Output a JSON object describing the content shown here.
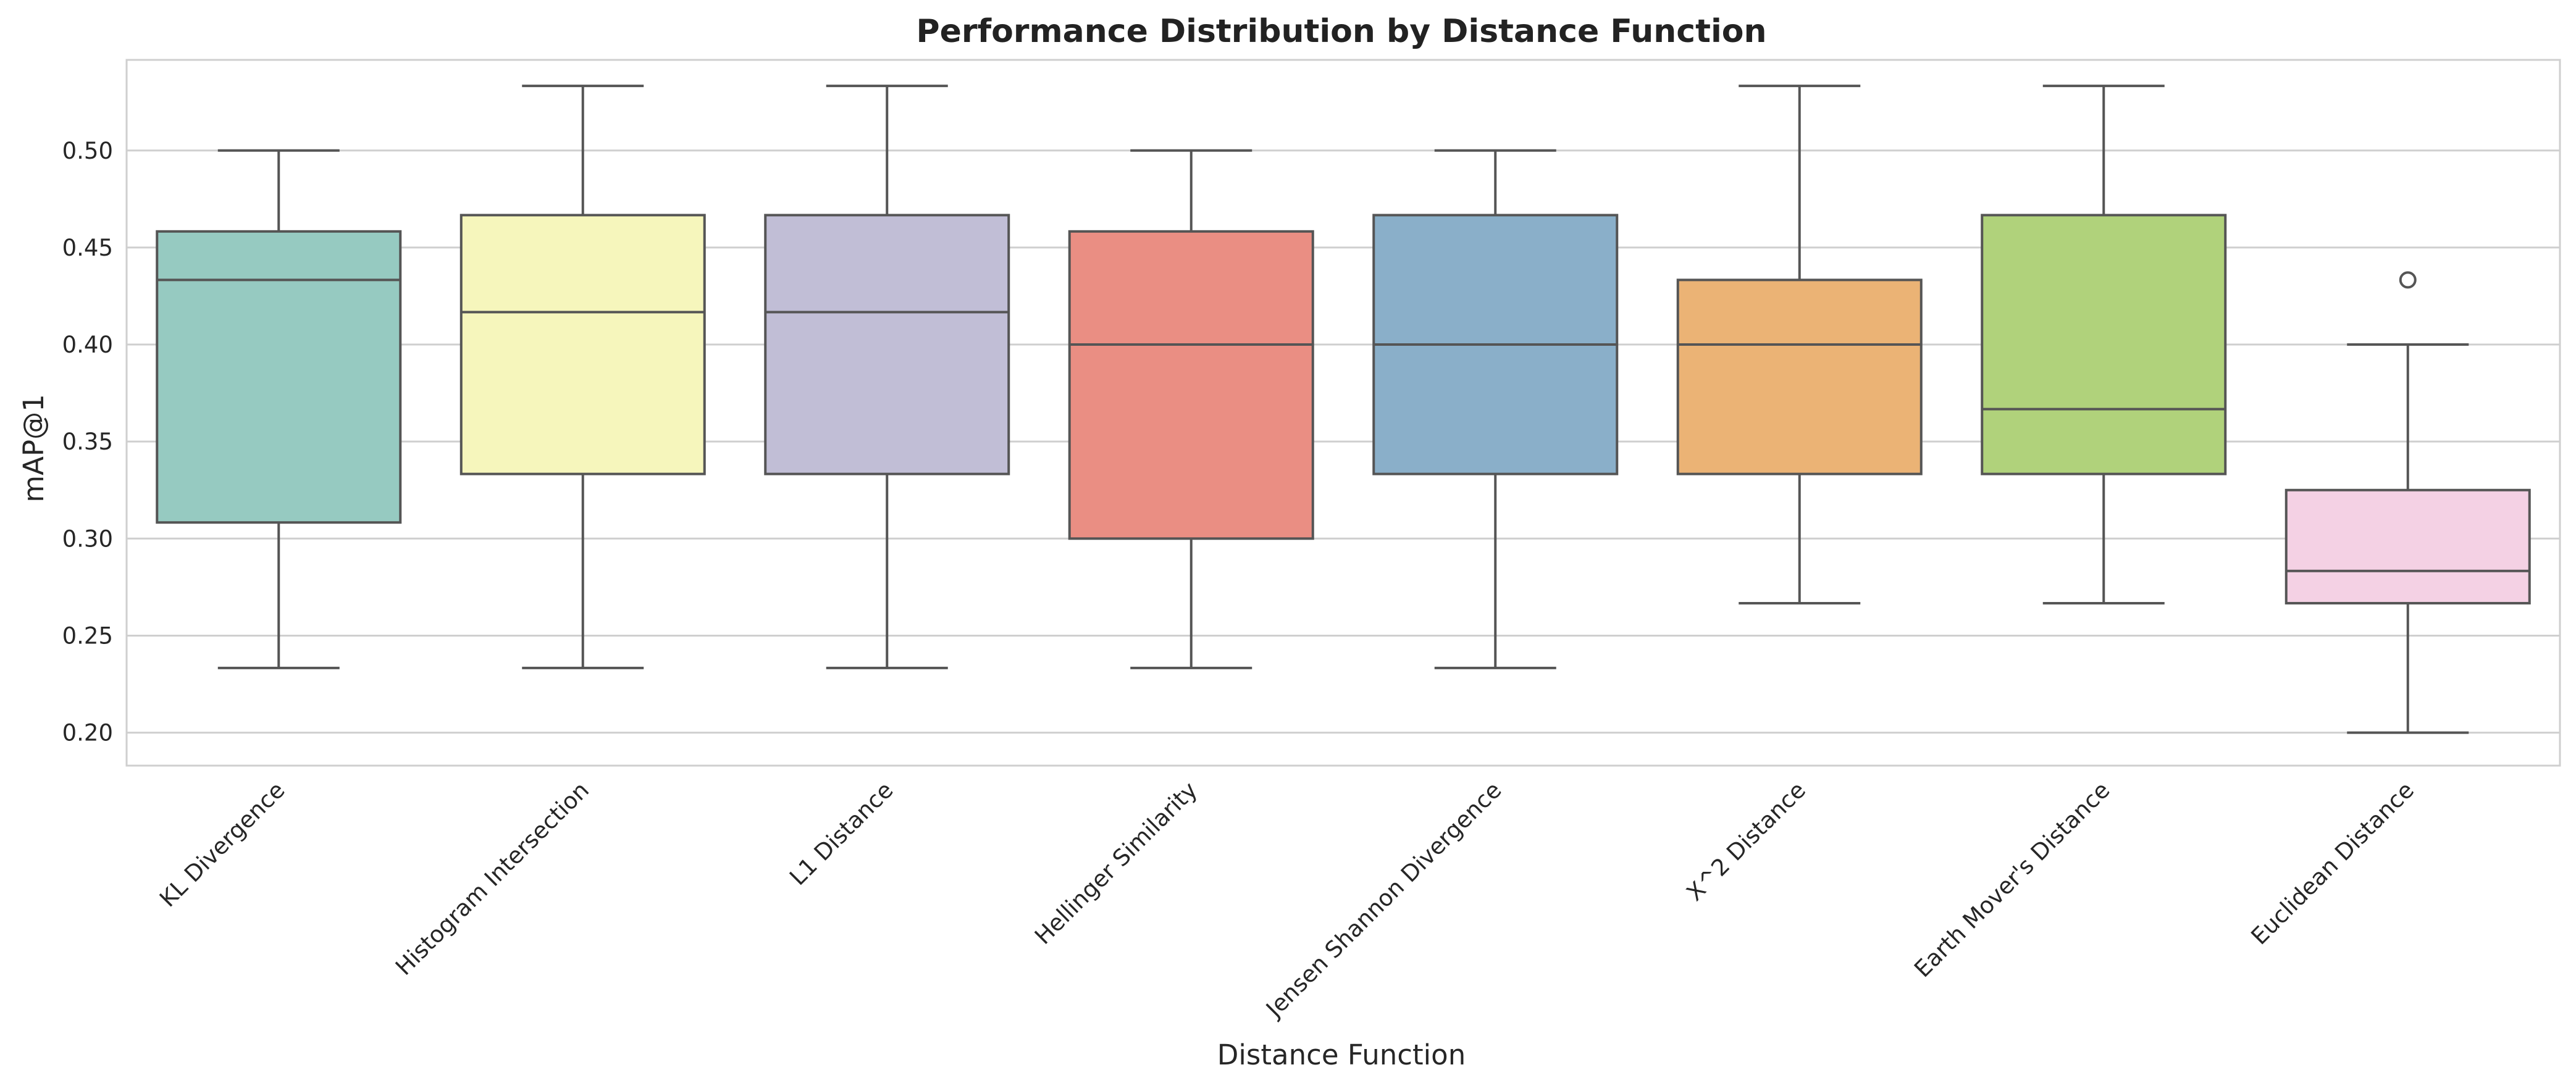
{
  "chart_data": {
    "type": "box",
    "title": "Performance Distribution by Distance Function",
    "xlabel": "Distance Function",
    "ylabel": "mAP@1",
    "ylim": [
      0.183,
      0.5467
    ],
    "yticks": [
      "0.20",
      "0.25",
      "0.30",
      "0.35",
      "0.40",
      "0.45",
      "0.50"
    ],
    "ytick_values": [
      0.2,
      0.25,
      0.3,
      0.35,
      0.4,
      0.45,
      0.5
    ],
    "grid": "horizontal",
    "categories": [
      "KL Divergence",
      "Histogram Intersection",
      "L1 Distance",
      "Hellinger Similarity",
      "Jensen Shannon Divergence",
      "X^2 Distance",
      "Earth Mover's Distance",
      "Euclidean Distance"
    ],
    "boxes": [
      {
        "whisker_low": 0.2333,
        "q1": 0.3083,
        "median": 0.4333,
        "q3": 0.4583,
        "whisker_high": 0.5,
        "fliers": [],
        "color": "#96cac1"
      },
      {
        "whisker_low": 0.2333,
        "q1": 0.3333,
        "median": 0.4167,
        "q3": 0.4667,
        "whisker_high": 0.5333,
        "fliers": [],
        "color": "#f6f6bc"
      },
      {
        "whisker_low": 0.2333,
        "q1": 0.3333,
        "median": 0.4167,
        "q3": 0.4667,
        "whisker_high": 0.5333,
        "fliers": [],
        "color": "#c1bed6"
      },
      {
        "whisker_low": 0.2333,
        "q1": 0.3,
        "median": 0.4,
        "q3": 0.4583,
        "whisker_high": 0.5,
        "fliers": [],
        "color": "#ea8e83"
      },
      {
        "whisker_low": 0.2333,
        "q1": 0.3333,
        "median": 0.4,
        "q3": 0.4667,
        "whisker_high": 0.5,
        "fliers": [],
        "color": "#8aafc9"
      },
      {
        "whisker_low": 0.2667,
        "q1": 0.3333,
        "median": 0.4,
        "q3": 0.4333,
        "whisker_high": 0.5333,
        "fliers": [],
        "color": "#ebb375"
      },
      {
        "whisker_low": 0.2667,
        "q1": 0.3333,
        "median": 0.3667,
        "q3": 0.4667,
        "whisker_high": 0.5333,
        "fliers": [],
        "color": "#b0d27b"
      },
      {
        "whisker_low": 0.2,
        "q1": 0.2667,
        "median": 0.2833,
        "q3": 0.325,
        "whisker_high": 0.4,
        "fliers": [
          0.4333
        ],
        "color": "#f4d1e4"
      }
    ]
  }
}
